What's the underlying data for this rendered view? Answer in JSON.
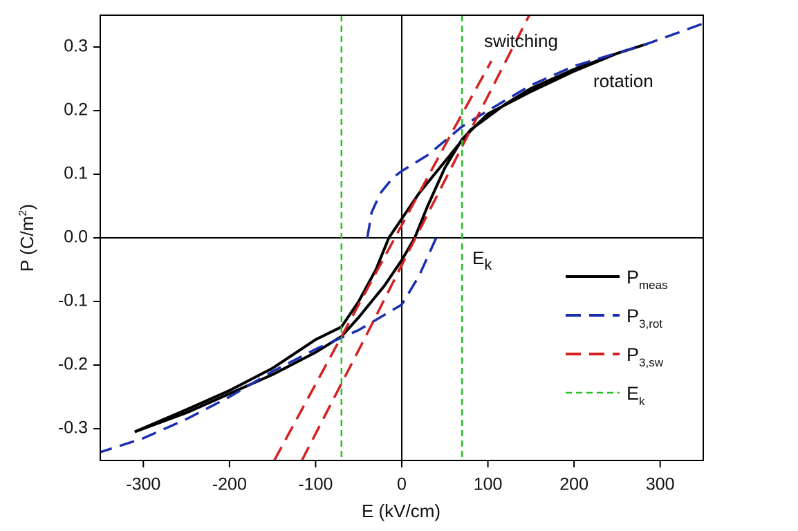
{
  "chart_data": {
    "type": "line",
    "xlabel": "E (kV/cm)",
    "ylabel": {
      "main": "P (C/m",
      "sup": "2",
      "end": ")"
    },
    "xlim": [
      -350,
      350
    ],
    "ylim": [
      -0.35,
      0.35
    ],
    "xticks": [
      -300,
      -200,
      -100,
      0,
      100,
      200,
      300
    ],
    "yticks": [
      -0.3,
      -0.2,
      -0.1,
      {
        "value": 0,
        "label": "0.0"
      },
      0.1,
      0.2,
      0.3
    ],
    "annotations": [
      {
        "text": "switching"
      },
      {
        "text": "rotation"
      },
      {
        "text": "E",
        "sub": "k"
      }
    ],
    "legend": "lower right",
    "series": [
      {
        "name": "P",
        "name_sub": "meas",
        "color": "#000000",
        "dash": "solid",
        "x": [
          -310,
          -250,
          -200,
          -150,
          -100,
          -70,
          -50,
          -30,
          -15,
          0,
          20,
          50,
          80,
          120,
          150,
          200,
          250,
          285,
          250,
          200,
          150,
          100,
          70,
          50,
          30,
          15,
          0,
          -20,
          -50,
          -70,
          -100,
          -150,
          -200,
          -250,
          -310
        ],
        "values": [
          -0.305,
          -0.27,
          -0.24,
          -0.205,
          -0.16,
          -0.14,
          -0.1,
          -0.05,
          0.0,
          0.03,
          0.07,
          0.12,
          0.17,
          0.21,
          0.235,
          0.265,
          0.29,
          0.305,
          0.29,
          0.262,
          0.23,
          0.195,
          0.155,
          0.11,
          0.05,
          0.0,
          -0.035,
          -0.075,
          -0.125,
          -0.155,
          -0.18,
          -0.215,
          -0.245,
          -0.275,
          -0.305
        ]
      },
      {
        "name": "P",
        "name_sub": "3,rot",
        "color": "#1a2fb0",
        "dash": "dashed",
        "x": [
          -40,
          -35,
          -25,
          -10,
          0,
          30,
          70,
          100,
          150,
          200,
          285,
          350,
          null,
          40,
          30,
          20,
          0,
          -50,
          -100,
          -150,
          -200,
          -250,
          -300,
          -350
        ],
        "values": [
          0.0,
          0.04,
          0.07,
          0.095,
          0.105,
          0.13,
          0.175,
          0.2,
          0.24,
          0.27,
          0.305,
          0.337,
          null,
          0.0,
          -0.03,
          -0.06,
          -0.105,
          -0.145,
          -0.175,
          -0.21,
          -0.25,
          -0.285,
          -0.315,
          -0.337
        ]
      },
      {
        "name": "P",
        "name_sub": "3,sw",
        "color": "#d42020",
        "dash": "dashed",
        "x": [
          -148,
          -60,
          0,
          60,
          104,
          null,
          -116,
          -40,
          16,
          80,
          148
        ],
        "values": [
          -0.35,
          -0.13,
          0.02,
          0.17,
          0.278,
          null,
          -0.35,
          -0.15,
          0.0,
          0.17,
          0.35
        ]
      },
      {
        "name": "E",
        "name_sub": "k",
        "color": "#22c322",
        "dash": "dashed",
        "vlines": [
          -70,
          70
        ]
      }
    ]
  }
}
